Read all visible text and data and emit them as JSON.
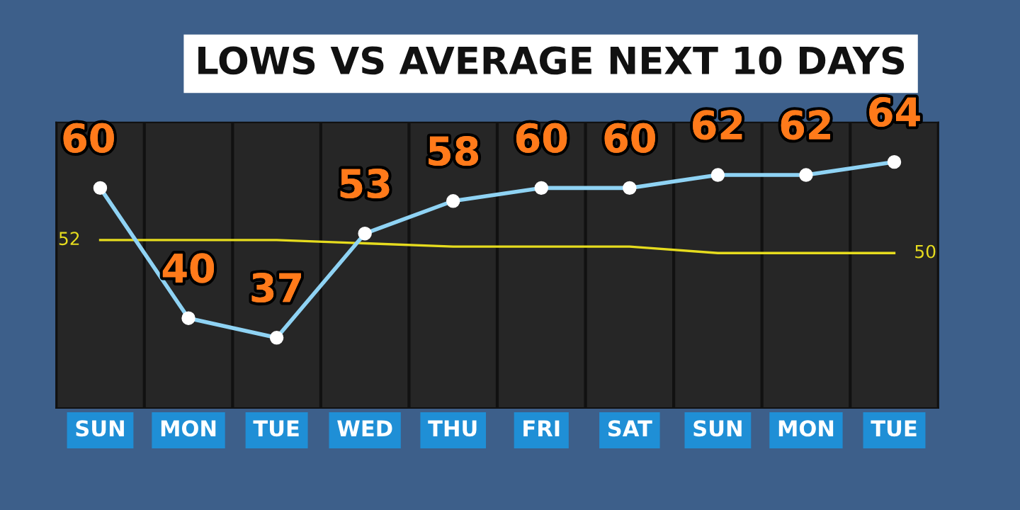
{
  "chart_data": {
    "type": "line",
    "title": "LOWS VS AVERAGE NEXT 10 DAYS",
    "categories": [
      "SUN",
      "MON",
      "TUE",
      "WED",
      "THU",
      "FRI",
      "SAT",
      "SUN",
      "MON",
      "TUE"
    ],
    "series": [
      {
        "color": "#8fd3f4",
        "marker": "circle",
        "values": [
          60,
          40,
          37,
          53,
          58,
          60,
          60,
          62,
          62,
          64
        ],
        "value_labels": [
          "60",
          "40",
          "37",
          "53",
          "58",
          "60",
          "60",
          "62",
          "62",
          "64"
        ]
      },
      {
        "color": "#e6dc1e",
        "marker": "none",
        "values": [
          52,
          52,
          52,
          51.5,
          51,
          51,
          51,
          50,
          50,
          50
        ],
        "value_labels": [
          "52",
          null,
          null,
          null,
          null,
          null,
          null,
          null,
          null,
          "50"
        ]
      }
    ],
    "grid": "x",
    "legend": false
  }
}
